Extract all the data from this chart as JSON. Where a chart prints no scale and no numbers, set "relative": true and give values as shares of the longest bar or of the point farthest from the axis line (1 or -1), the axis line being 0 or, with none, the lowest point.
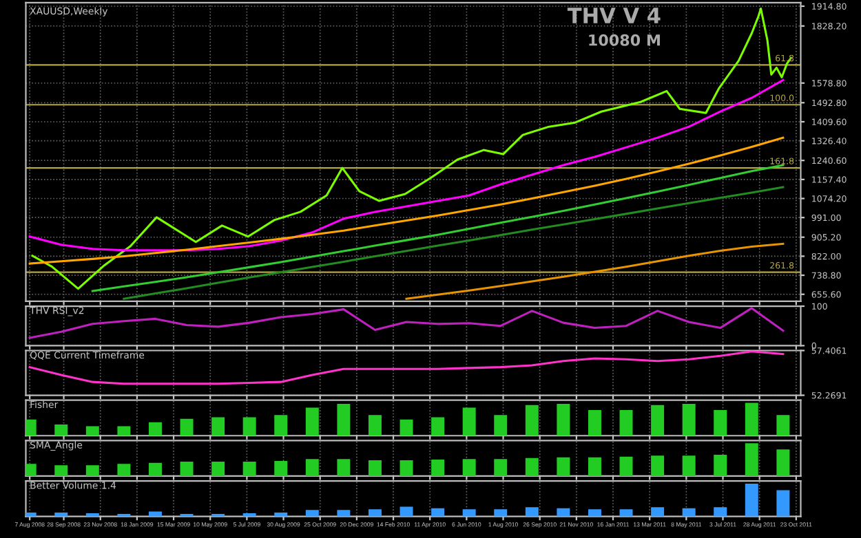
{
  "chart_data": [
    {
      "type": "line",
      "title": "XAUUSD,Weekly",
      "annotations": [
        "THV V 4",
        "10080 M",
        {
          "text": "61.8",
          "x": "2011-10-20",
          "y": 1658
        },
        {
          "text": "100.0",
          "x": "2011-10-20",
          "y": 1484
        },
        {
          "text": "161.8",
          "x": "2011-10-20",
          "y": 1208
        },
        {
          "text": "261.8",
          "x": "2011-10-20",
          "y": 752
        }
      ],
      "xlim": [
        "2008-08-01",
        "2011-10-30"
      ],
      "ylim": [
        625,
        1930
      ],
      "yticks": [
        {
          "value": 655.6,
          "label": "655.60"
        },
        {
          "value": 738.8,
          "label": "738.80"
        },
        {
          "value": 822.0,
          "label": "822.00"
        },
        {
          "value": 905.2,
          "label": "905.20"
        },
        {
          "value": 991.0,
          "label": "991.00"
        },
        {
          "value": 1074.2,
          "label": "1074.20"
        },
        {
          "value": 1157.4,
          "label": "1157.40"
        },
        {
          "value": 1240.6,
          "label": "1240.60"
        },
        {
          "value": 1326.4,
          "label": "1326.40"
        },
        {
          "value": 1409.6,
          "label": "1409.60"
        },
        {
          "value": 1492.8,
          "label": "1492.80"
        },
        {
          "value": 1578.8,
          "label": "1578.80"
        },
        {
          "value": 1828.2,
          "label": "1828.20"
        },
        {
          "value": 1914.8,
          "label": "1914.80"
        }
      ],
      "tick_labels": "y",
      "grid": true,
      "legend": false,
      "ref_lines": [
        {
          "axis": "y",
          "value": 1658,
          "color": "#b5a642"
        },
        {
          "axis": "y",
          "value": 1484,
          "color": "#b5a642"
        },
        {
          "axis": "y",
          "value": 1208,
          "color": "#b5a642"
        },
        {
          "axis": "y",
          "value": 752,
          "color": "#b5a642"
        }
      ],
      "series": [
        {
          "color": "#7CFC00",
          "x": [
            "2008-08-11",
            "2008-09-10",
            "2008-10-20",
            "2008-11-29",
            "2009-01-08",
            "2009-02-17",
            "2009-03-29",
            "2009-04-18",
            "2009-05-28",
            "2009-07-07",
            "2009-08-16",
            "2009-09-25",
            "2009-11-04",
            "2009-11-28",
            "2009-12-24",
            "2010-01-23",
            "2010-03-04",
            "2010-04-13",
            "2010-05-23",
            "2010-07-02",
            "2010-08-01",
            "2010-08-31",
            "2010-10-10",
            "2010-11-19",
            "2010-12-29",
            "2011-02-27",
            "2011-04-08",
            "2011-04-28",
            "2011-06-07",
            "2011-06-27",
            "2011-07-27",
            "2011-08-16",
            "2011-08-26",
            "2011-08-30",
            "2011-09-09",
            "2011-09-15",
            "2011-09-23",
            "2011-10-01",
            "2011-10-09",
            "2011-10-15"
          ],
          "values": [
            824,
            776,
            680,
            782,
            866,
            992,
            920,
            884,
            956,
            908,
            980,
            1016,
            1088,
            1208,
            1106,
            1064,
            1094,
            1166,
            1244,
            1286,
            1268,
            1352,
            1388,
            1406,
            1454,
            1496,
            1544,
            1466,
            1448,
            1556,
            1676,
            1796,
            1868,
            1904,
            1766,
            1616,
            1646,
            1604,
            1664,
            1688
          ]
        },
        {
          "color": "#ff00ff",
          "values": [
            908,
            872,
            854,
            848,
            848,
            848,
            854,
            866,
            890,
            926,
            986,
            1016,
            1040,
            1064,
            1088,
            1136,
            1178,
            1220,
            1256,
            1298,
            1340,
            1388,
            1454,
            1514,
            1592
          ]
        },
        {
          "color": "#ffa500",
          "values": [
            790,
            800,
            810,
            822,
            836,
            850,
            866,
            882,
            898,
            916,
            934,
            956,
            978,
            1000,
            1024,
            1048,
            1074,
            1102,
            1130,
            1160,
            1192,
            1226,
            1262,
            1300,
            1340
          ]
        },
        {
          "color": "#32cd32",
          "values": [
            null,
            null,
            670,
            690,
            710,
            730,
            752,
            774,
            796,
            820,
            844,
            868,
            892,
            916,
            942,
            968,
            994,
            1020,
            1048,
            1076,
            1104,
            1134,
            1164,
            1194,
            1220
          ]
        },
        {
          "color": "#228b22",
          "values": [
            null,
            null,
            null,
            636,
            659,
            682,
            706,
            729,
            752,
            775,
            798,
            822,
            845,
            868,
            891,
            914,
            938,
            961,
            984,
            1007,
            1031,
            1054,
            1077,
            1100,
            1124
          ]
        },
        {
          "color": "#e69500",
          "values": [
            null,
            null,
            null,
            null,
            null,
            null,
            null,
            null,
            null,
            null,
            null,
            null,
            636,
            654,
            672,
            692,
            712,
            732,
            754,
            776,
            800,
            824,
            846,
            864,
            876
          ]
        }
      ],
      "x": [
        "2008-08-07",
        "2008-09-24",
        "2008-11-11",
        "2008-12-29",
        "2009-02-15",
        "2009-04-04",
        "2009-05-22",
        "2009-07-09",
        "2009-08-26",
        "2009-10-13",
        "2009-11-30",
        "2010-01-17",
        "2010-03-06",
        "2010-04-23",
        "2010-06-10",
        "2010-07-28",
        "2010-09-14",
        "2010-11-01",
        "2010-12-19",
        "2011-02-05",
        "2011-03-25",
        "2011-05-12",
        "2011-06-29",
        "2011-08-16",
        "2011-10-03"
      ]
    },
    {
      "type": "line",
      "title": "THV RSI_v2",
      "xlim": [
        "2008-08-01",
        "2011-10-30"
      ],
      "ylim": [
        0,
        100
      ],
      "yticks": [
        0,
        100
      ],
      "tick_labels": "y",
      "grid": true,
      "legend": false,
      "x": [
        "2008-08-07",
        "2008-09-24",
        "2008-11-11",
        "2008-12-29",
        "2009-02-15",
        "2009-04-04",
        "2009-05-22",
        "2009-07-09",
        "2009-08-26",
        "2009-10-13",
        "2009-11-30",
        "2010-01-17",
        "2010-03-06",
        "2010-04-23",
        "2010-06-10",
        "2010-07-28",
        "2010-09-14",
        "2010-11-01",
        "2010-12-19",
        "2011-02-05",
        "2011-03-25",
        "2011-05-12",
        "2011-06-29",
        "2011-08-16",
        "2011-10-03"
      ],
      "series": [
        {
          "color": "#c020c0",
          "values": [
            20,
            35,
            55,
            62,
            68,
            52,
            48,
            58,
            72,
            80,
            92,
            40,
            60,
            55,
            57,
            50,
            88,
            58,
            45,
            50,
            88,
            60,
            45,
            95,
            38
          ]
        }
      ]
    },
    {
      "type": "line",
      "title": "QQE Current Timeframe",
      "xlim": [
        "2008-08-01",
        "2011-10-30"
      ],
      "ylim": [
        52.2691,
        57.4061
      ],
      "yticks": [
        52.2691,
        57.4061
      ],
      "tick_labels": "y",
      "grid": true,
      "legend": false,
      "x": [
        "2008-08-07",
        "2008-09-24",
        "2008-11-11",
        "2008-12-29",
        "2009-02-15",
        "2009-04-04",
        "2009-05-22",
        "2009-07-09",
        "2009-08-26",
        "2009-10-13",
        "2009-11-30",
        "2010-01-17",
        "2010-03-06",
        "2010-04-23",
        "2010-06-10",
        "2010-07-28",
        "2010-09-14",
        "2010-11-01",
        "2010-12-19",
        "2011-02-05",
        "2011-03-25",
        "2011-05-12",
        "2011-06-29",
        "2011-08-16",
        "2011-10-03"
      ],
      "series": [
        {
          "color": "#ff33cc",
          "values": [
            55.5,
            54.6,
            53.8,
            53.6,
            53.6,
            53.6,
            53.6,
            53.7,
            53.8,
            54.6,
            55.3,
            55.3,
            55.3,
            55.3,
            55.4,
            55.5,
            55.7,
            56.2,
            56.5,
            56.4,
            56.2,
            56.4,
            56.8,
            57.3,
            57.0
          ]
        }
      ]
    },
    {
      "type": "bar",
      "title": "Fisher",
      "relative": true,
      "xlim": [
        "2008-08-01",
        "2011-10-30"
      ],
      "tick_labels": false,
      "grid": true,
      "legend": false,
      "x": [
        "2008-08-07",
        "2008-09-24",
        "2008-11-11",
        "2008-12-29",
        "2009-02-15",
        "2009-04-04",
        "2009-05-22",
        "2009-07-09",
        "2009-08-26",
        "2009-10-13",
        "2009-11-30",
        "2010-01-17",
        "2010-03-06",
        "2010-04-23",
        "2010-06-10",
        "2010-07-28",
        "2010-09-14",
        "2010-11-01",
        "2010-12-19",
        "2011-02-05",
        "2011-03-25",
        "2011-05-12",
        "2011-06-29",
        "2011-08-16",
        "2011-10-03"
      ],
      "series": [
        {
          "color": "#22cc22",
          "values": [
            0.49,
            0.34,
            0.29,
            0.29,
            0.41,
            0.51,
            0.56,
            0.56,
            0.63,
            0.85,
            0.97,
            0.63,
            0.49,
            0.56,
            0.85,
            0.63,
            0.93,
            0.97,
            0.78,
            0.78,
            0.93,
            0.97,
            0.78,
            1,
            0.63
          ]
        }
      ]
    },
    {
      "type": "bar",
      "title": "SMA_Angle",
      "relative": true,
      "xlim": [
        "2008-08-01",
        "2011-10-30"
      ],
      "tick_labels": false,
      "grid": true,
      "legend": false,
      "x": [
        "2008-08-07",
        "2008-09-24",
        "2008-11-11",
        "2008-12-29",
        "2009-02-15",
        "2009-04-04",
        "2009-05-22",
        "2009-07-09",
        "2009-08-26",
        "2009-10-13",
        "2009-11-30",
        "2010-01-17",
        "2010-03-06",
        "2010-04-23",
        "2010-06-10",
        "2010-07-28",
        "2010-09-14",
        "2010-11-01",
        "2010-12-19",
        "2011-02-05",
        "2011-03-25",
        "2011-05-12",
        "2011-06-29",
        "2011-08-16",
        "2011-10-03"
      ],
      "series": [
        {
          "color": "#22cc22",
          "values": [
            0.37,
            0.33,
            0.33,
            0.37,
            0.4,
            0.44,
            0.44,
            0.44,
            0.46,
            0.52,
            0.52,
            0.48,
            0.48,
            0.5,
            0.52,
            0.52,
            0.55,
            0.57,
            0.57,
            0.59,
            0.62,
            0.62,
            0.65,
            1,
            0.81
          ]
        }
      ]
    },
    {
      "type": "bar",
      "title": "Better Volume 1.4",
      "relative": true,
      "xlim": [
        "2008-08-01",
        "2011-10-30"
      ],
      "tick_labels": "x",
      "grid": true,
      "legend": false,
      "xticks": [
        {
          "value": "2008-08-07",
          "label": "7 Aug 2008"
        },
        {
          "value": "2008-09-28",
          "label": "28 Sep 2008"
        },
        {
          "value": "2008-11-23",
          "label": "23 Nov 2008"
        },
        {
          "value": "2009-01-18",
          "label": "18 Jan 2009"
        },
        {
          "value": "2009-03-15",
          "label": "15 Mar 2009"
        },
        {
          "value": "2009-05-10",
          "label": "10 May 2009"
        },
        {
          "value": "2009-07-05",
          "label": "5 Jul 2009"
        },
        {
          "value": "2009-08-30",
          "label": "30 Aug 2009"
        },
        {
          "value": "2009-10-25",
          "label": "25 Oct 2009"
        },
        {
          "value": "2009-12-20",
          "label": "20 Dec 2009"
        },
        {
          "value": "2010-02-14",
          "label": "14 Feb 2010"
        },
        {
          "value": "2010-04-11",
          "label": "11 Apr 2010"
        },
        {
          "value": "2010-06-06",
          "label": "6 Jun 2010"
        },
        {
          "value": "2010-08-01",
          "label": "1 Aug 2010"
        },
        {
          "value": "2010-09-26",
          "label": "26 Sep 2010"
        },
        {
          "value": "2010-11-21",
          "label": "21 Nov 2010"
        },
        {
          "value": "2011-01-16",
          "label": "16 Jan 2011"
        },
        {
          "value": "2011-03-13",
          "label": "13 Mar 2011"
        },
        {
          "value": "2011-05-08",
          "label": "8 May 2011"
        },
        {
          "value": "2011-07-03",
          "label": "3 Jul 2011"
        },
        {
          "value": "2011-08-28",
          "label": "28 Aug 2011"
        },
        {
          "value": "2011-10-23",
          "label": "23 Oct 2011"
        }
      ],
      "x": [
        "2008-08-07",
        "2008-09-24",
        "2008-11-11",
        "2008-12-29",
        "2009-02-15",
        "2009-04-04",
        "2009-05-22",
        "2009-07-09",
        "2009-08-26",
        "2009-10-13",
        "2009-11-30",
        "2010-01-17",
        "2010-03-06",
        "2010-04-23",
        "2010-06-10",
        "2010-07-28",
        "2010-09-14",
        "2010-11-01",
        "2010-12-19",
        "2011-02-05",
        "2011-03-25",
        "2011-05-12",
        "2011-06-29",
        "2011-08-16",
        "2011-10-03"
      ],
      "series": [
        {
          "color": "#3399ff",
          "values": [
            0.12,
            0.12,
            0.1,
            0.08,
            0.15,
            0.08,
            0.08,
            0.1,
            0.12,
            0.2,
            0.2,
            0.22,
            0.3,
            0.25,
            0.22,
            0.22,
            0.28,
            0.25,
            0.22,
            0.22,
            0.28,
            0.25,
            0.28,
            1,
            0.8
          ]
        }
      ]
    }
  ]
}
